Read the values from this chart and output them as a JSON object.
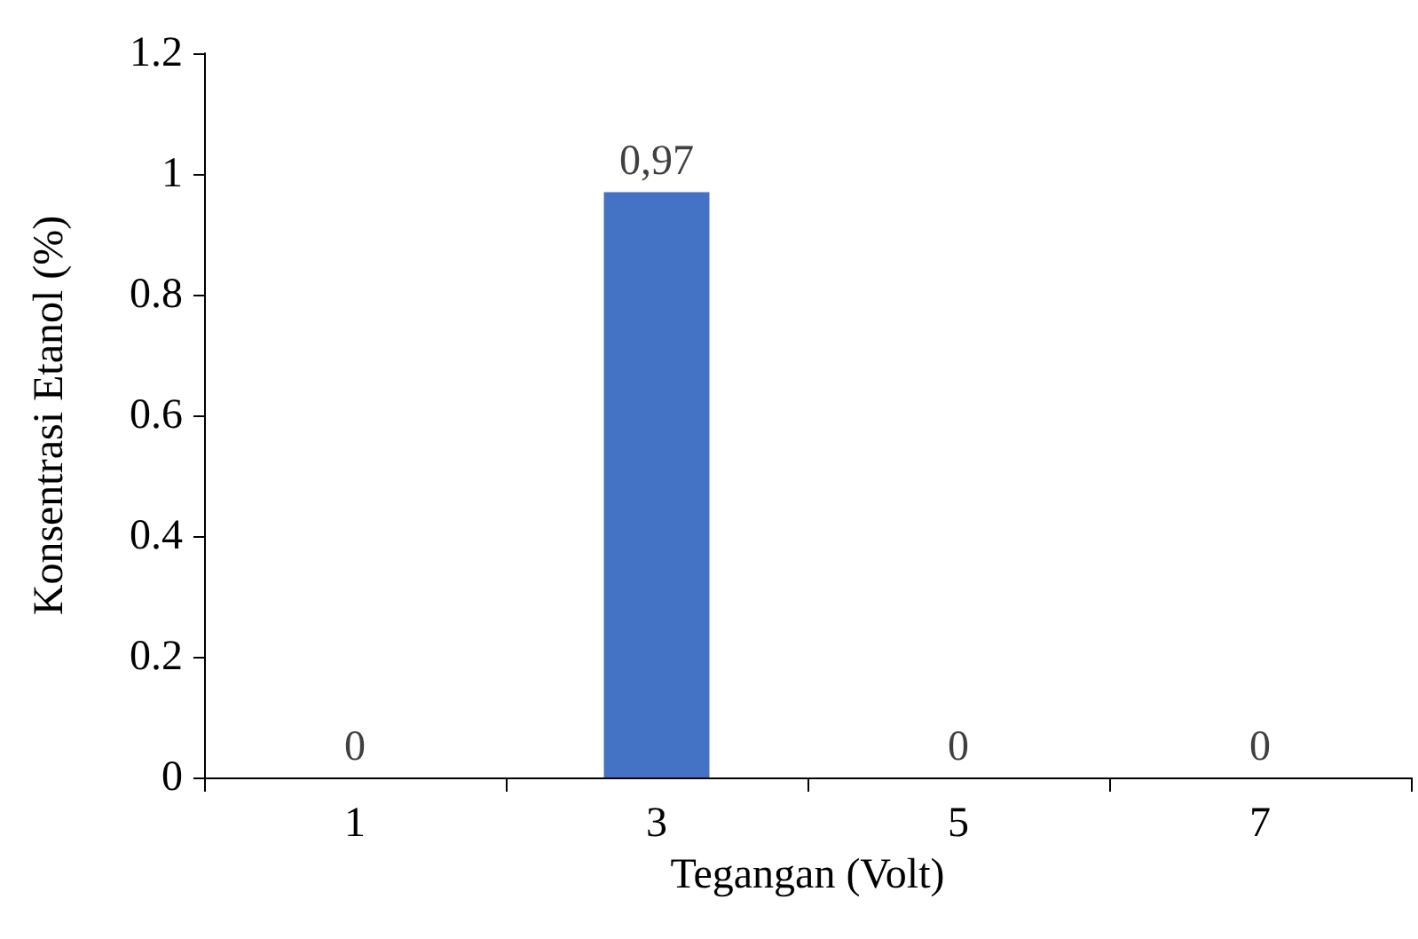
{
  "chart_data": {
    "type": "bar",
    "xlabel": "Tegangan (Volt)",
    "ylabel": "Konsentrasi Etanol (%)",
    "categories": [
      "1",
      "3",
      "5",
      "7"
    ],
    "values": [
      0,
      0.97,
      0,
      0
    ],
    "value_labels": [
      "0",
      "0,97",
      "0",
      "0"
    ],
    "color": "#4472c4",
    "ylim": [
      0,
      1.2
    ],
    "yticks": [
      0,
      0.2,
      0.4,
      0.6,
      0.8,
      1,
      1.2
    ],
    "grid": false
  }
}
